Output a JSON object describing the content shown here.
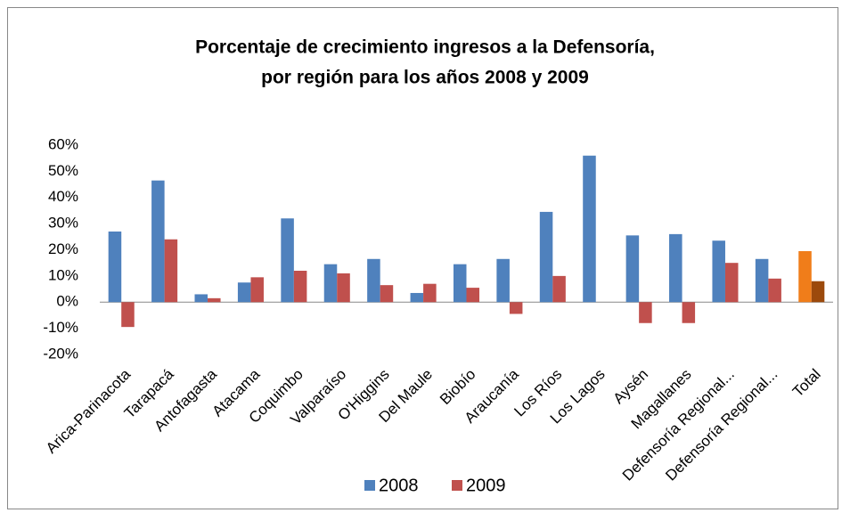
{
  "chart_data": {
    "type": "bar",
    "title": [
      "Porcentaje de crecimiento ingresos a la Defensoría,",
      "por región  para los años 2008 y 2009"
    ],
    "categories": [
      "Arica-Parinacota",
      "Tarapacá",
      "Antofagasta",
      "Atacama",
      "Coquimbo",
      "Valparaíso",
      "O'Higgins",
      "Del Maule",
      "Biobío",
      "Araucanía",
      "Los Ríos",
      "Los Lagos",
      "Aysén",
      "Magallanes",
      "Defensoría Regional...",
      "Defensoría Regional...",
      "Total"
    ],
    "series": [
      {
        "name": "2008",
        "color": "#4f81bd",
        "colors": [
          "#4f81bd",
          "#4f81bd",
          "#4f81bd",
          "#4f81bd",
          "#4f81bd",
          "#4f81bd",
          "#4f81bd",
          "#4f81bd",
          "#4f81bd",
          "#4f81bd",
          "#4f81bd",
          "#4f81bd",
          "#4f81bd",
          "#4f81bd",
          "#4f81bd",
          "#4f81bd",
          "#f07d1a"
        ],
        "values": [
          27,
          46.5,
          3,
          7.5,
          32,
          14.5,
          16.5,
          3.5,
          14.5,
          16.5,
          34.5,
          56,
          25.5,
          26,
          23.5,
          16.5,
          19.5
        ]
      },
      {
        "name": "2009",
        "color": "#c0504d",
        "colors": [
          "#c0504d",
          "#c0504d",
          "#c0504d",
          "#c0504d",
          "#c0504d",
          "#c0504d",
          "#c0504d",
          "#c0504d",
          "#c0504d",
          "#c0504d",
          "#c0504d",
          "#c0504d",
          "#c0504d",
          "#c0504d",
          "#c0504d",
          "#c0504d",
          "#9c4a0c"
        ],
        "values": [
          -9.5,
          24,
          1.5,
          9.5,
          12,
          11,
          6.5,
          7,
          5.5,
          -4.5,
          10,
          null,
          -8,
          -8,
          15,
          9,
          8
        ]
      }
    ],
    "ylim": [
      -20,
      60
    ],
    "yticks": [
      {
        "value": -20,
        "label": "-20%"
      },
      {
        "value": -10,
        "label": "-10%"
      },
      {
        "value": 0,
        "label": "0%"
      },
      {
        "value": 10,
        "label": "10%"
      },
      {
        "value": 20,
        "label": "20%"
      },
      {
        "value": 30,
        "label": "30%"
      },
      {
        "value": 40,
        "label": "40%"
      },
      {
        "value": 50,
        "label": "50%"
      },
      {
        "value": 60,
        "label": "60%"
      }
    ],
    "grid": false,
    "legend": "bottom"
  }
}
